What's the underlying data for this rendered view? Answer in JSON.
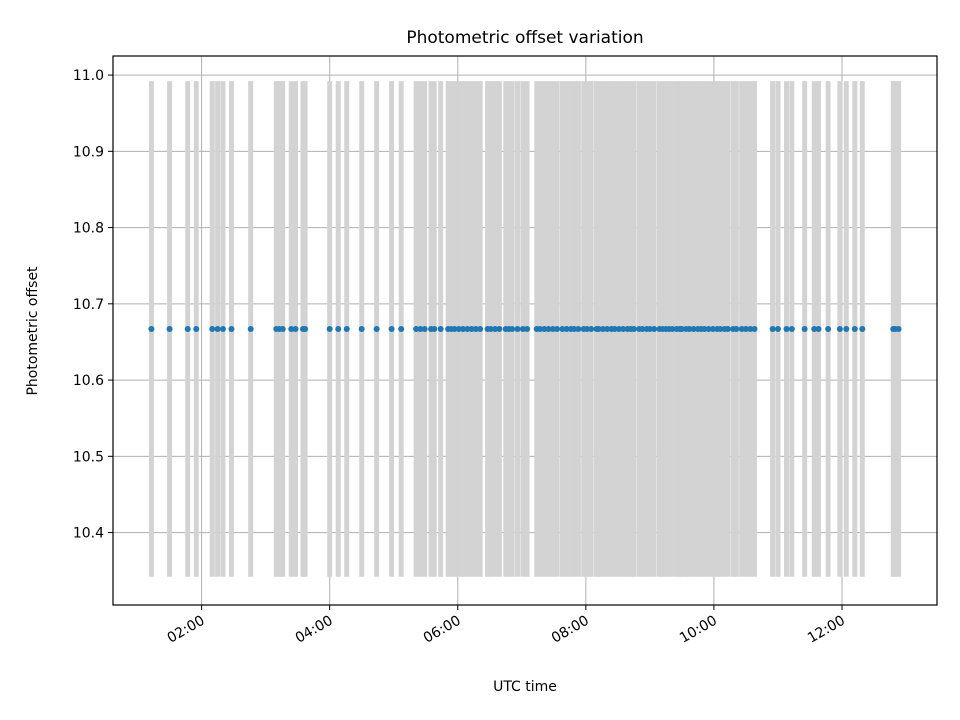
{
  "chart_data": {
    "type": "scatter",
    "title": "Photometric offset variation",
    "xlabel": "UTC time",
    "ylabel": "Photometric offset",
    "x_unit": "UTC hours",
    "xlim": [
      "00:37",
      "13:29"
    ],
    "ylim": [
      10.305,
      11.025
    ],
    "grid": true,
    "x_ticks": [
      "02:00",
      "04:00",
      "06:00",
      "08:00",
      "10:00",
      "12:00"
    ],
    "y_ticks": [
      "10.4",
      "10.5",
      "10.6",
      "10.7",
      "10.8",
      "10.9",
      "11.0"
    ],
    "error_bar_range": [
      10.342,
      10.992
    ],
    "colors": {
      "points": "#1f77b4",
      "error_bars": "#d3d3d3",
      "grid": "#b0b0b0"
    },
    "series": [
      {
        "y": 10.667,
        "x": [
          "01:13",
          "01:30",
          "01:47",
          "01:55",
          "02:10",
          "02:15",
          "02:20",
          "02:28",
          "02:46",
          "03:10",
          "03:13",
          "03:16",
          "03:24",
          "03:28",
          "03:35",
          "03:37",
          "04:00",
          "04:08",
          "04:16",
          "04:30",
          "04:44",
          "04:58",
          "05:07",
          "05:21",
          "05:25",
          "05:29",
          "05:35",
          "05:38",
          "05:44",
          "05:51",
          "05:54",
          "05:57",
          "06:01",
          "06:05",
          "06:09",
          "06:13",
          "06:17",
          "06:21",
          "06:28",
          "06:31",
          "06:35",
          "06:39",
          "06:45",
          "06:48",
          "06:51",
          "06:56",
          "07:01",
          "07:05",
          "07:14",
          "07:17",
          "07:21",
          "07:25",
          "07:29",
          "07:33",
          "07:38",
          "07:42",
          "07:46",
          "07:49",
          "07:53",
          "07:58",
          "08:01",
          "08:05",
          "08:10",
          "08:12",
          "08:16",
          "08:20",
          "08:24",
          "08:27",
          "08:31",
          "08:35",
          "08:39",
          "08:42",
          "08:45",
          "08:50",
          "08:53",
          "08:57",
          "09:00",
          "09:04",
          "09:09",
          "09:12",
          "09:15",
          "09:18",
          "09:21",
          "09:25",
          "09:28",
          "09:30",
          "09:34",
          "09:37",
          "09:41",
          "09:45",
          "09:48",
          "09:51",
          "09:55",
          "09:59",
          "10:03",
          "10:06",
          "10:10",
          "10:13",
          "10:18",
          "10:21",
          "10:26",
          "10:30",
          "10:34",
          "10:38",
          "10:55",
          "11:00",
          "11:08",
          "11:13",
          "11:25",
          "11:34",
          "11:38",
          "11:47",
          "11:58",
          "12:04",
          "12:12",
          "12:19",
          "12:48",
          "12:50",
          "12:53"
        ]
      }
    ]
  }
}
